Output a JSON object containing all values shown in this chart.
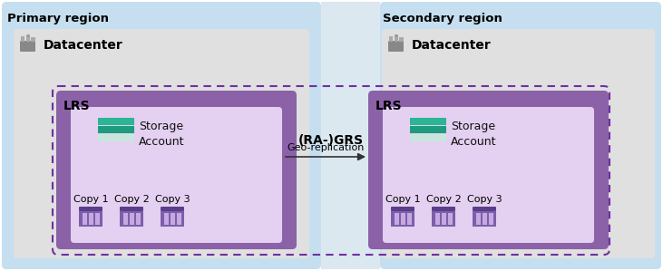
{
  "background_color": "#ffffff",
  "primary_region_label": "Primary region",
  "secondary_region_label": "Secondary region",
  "primary_bg_color": "#c5dff0",
  "secondary_bg_color": "#c5dff0",
  "datacenter_bg_color": "#e0e0e0",
  "datacenter_label": "Datacenter",
  "lrs_outer_color": "#8b62a8",
  "lrs_inner_color": "#e4d0f0",
  "lrs_label": "LRS",
  "grs_label": "(RA-)GRS",
  "geo_rep_label": "Geo-replication",
  "storage_label_line1": "Storage",
  "storage_label_line2": "Account",
  "copy_labels": [
    "Copy 1",
    "Copy 2",
    "Copy 3"
  ],
  "dashed_border_color": "#7030a0",
  "arrow_color": "#333333",
  "title_fontsize": 9.5,
  "label_fontsize": 9,
  "copy_fontsize": 8,
  "middle_bg_color": "#dce8f0"
}
